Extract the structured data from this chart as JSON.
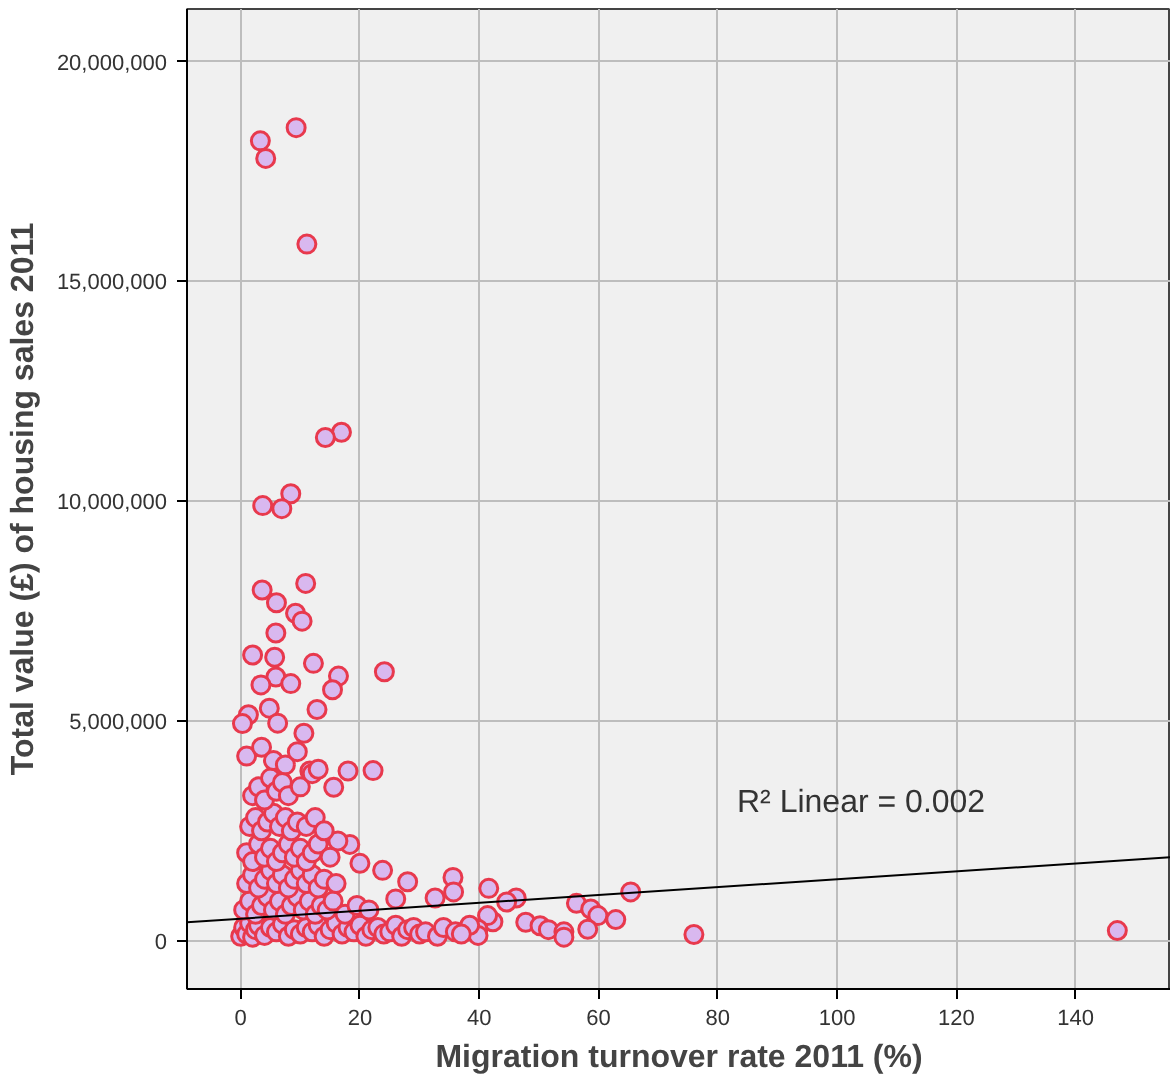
{
  "chart_data": {
    "type": "scatter",
    "xlabel": "Migration turnover rate 2011 (%)",
    "ylabel": "Total value (£) of housing sales 2011",
    "xlim": [
      -9,
      156
    ],
    "ylim": [
      -1100000,
      21200000
    ],
    "xticks": [
      0,
      20,
      40,
      60,
      80,
      100,
      120,
      140
    ],
    "yticks": [
      0,
      {
        "value": 5000000,
        "label": "5,000,000"
      },
      {
        "value": 10000000,
        "label": "10,000,000"
      },
      {
        "value": 15000000,
        "label": "15,000,000"
      },
      {
        "value": 20000000,
        "label": "20,000,000"
      }
    ],
    "grid": true,
    "annotations": [
      "R² Linear = 0.002"
    ],
    "series": [
      {
        "marker": "circle",
        "color": "#e8394d",
        "x": [
          9.3,
          3.3,
          4.2,
          11.1,
          16.9,
          14.2,
          8.4,
          3.7,
          6.9,
          3.6,
          10.9,
          6.0,
          9.2,
          10.3,
          5.9,
          2.0,
          5.7,
          12.2,
          16.4,
          15.4,
          24.1,
          5.9,
          3.4,
          8.4,
          4.8,
          12.8,
          1.3,
          0.3,
          6.2,
          10.6,
          18.0,
          22.2,
          11.6,
          15.6,
          41.6,
          46.2,
          44.6,
          65.4,
          56.3,
          58.7,
          59.9,
          62.9,
          47.8,
          50.2,
          51.6,
          54.2,
          54.2,
          58.2,
          42.3,
          41.4,
          39.8,
          39.8,
          38.4,
          35.6,
          28.0,
          23.8,
          32.6,
          35.7,
          26.0,
          20.0,
          18.3,
          16.3,
          76.0,
          147.0,
          0.0,
          0.5,
          1.0,
          1.5,
          2.0,
          2.5,
          3.0,
          4.0,
          5.0,
          6.0,
          7.0,
          8.0,
          9.0,
          10.0,
          11.0,
          12.0,
          13.0,
          14.0,
          15.0,
          16.0,
          17.0,
          18.0,
          19.0,
          20.0,
          21.0,
          22.0,
          23.0,
          24.0,
          25.0,
          26.0,
          27.0,
          28.0,
          29.0,
          30.0,
          31.0,
          33.0,
          34.0,
          36.0,
          37.0,
          0.5,
          1.5,
          2.5,
          3.5,
          4.5,
          5.5,
          6.5,
          7.5,
          8.5,
          9.5,
          10.5,
          11.5,
          12.5,
          13.5,
          14.5,
          15.5,
          17.5,
          19.5,
          21.5,
          1.0,
          2.0,
          3.0,
          4.0,
          5.0,
          6.0,
          7.0,
          8.0,
          9.0,
          10.0,
          11.0,
          12.0,
          13.0,
          14.0,
          16.0,
          1.0,
          2.0,
          3.0,
          4.0,
          5.0,
          6.0,
          7.0,
          8.0,
          9.0,
          10.0,
          11.0,
          12.0,
          13.0,
          15.0,
          1.5,
          2.5,
          3.5,
          4.5,
          5.5,
          6.5,
          7.5,
          8.5,
          9.5,
          11.0,
          12.5,
          14.0,
          2.0,
          3.0,
          4.0,
          5.0,
          6.0,
          7.0,
          8.0,
          10.0,
          12.0,
          1.0,
          3.5,
          5.5,
          7.5,
          9.5,
          13.0
        ],
        "values": [
          18500000,
          18200000,
          17800000,
          15850000,
          11570000,
          11450000,
          10170000,
          9900000,
          9830000,
          7980000,
          8130000,
          7690000,
          7450000,
          7270000,
          7000000,
          6500000,
          6450000,
          6310000,
          6020000,
          5710000,
          6120000,
          6000000,
          5820000,
          5850000,
          5290000,
          5260000,
          5140000,
          4940000,
          4950000,
          4720000,
          3860000,
          3870000,
          3860000,
          3490000,
          1190000,
          970000,
          880000,
          1110000,
          850000,
          720000,
          570000,
          480000,
          420000,
          340000,
          250000,
          200000,
          80000,
          260000,
          430000,
          570000,
          260000,
          120000,
          350000,
          1440000,
          1340000,
          1600000,
          970000,
          1110000,
          950000,
          1760000,
          2190000,
          2270000,
          140000,
          230000,
          100000,
          300000,
          150000,
          400000,
          80000,
          250000,
          350000,
          120000,
          300000,
          200000,
          380000,
          100000,
          250000,
          150000,
          300000,
          200000,
          350000,
          100000,
          250000,
          400000,
          150000,
          300000,
          200000,
          350000,
          100000,
          250000,
          300000,
          150000,
          200000,
          350000,
          100000,
          250000,
          300000,
          150000,
          200000,
          100000,
          300000,
          200000,
          150000,
          700000,
          900000,
          600000,
          800000,
          1000000,
          700000,
          900000,
          600000,
          800000,
          1000000,
          700000,
          900000,
          600000,
          800000,
          700000,
          900000,
          600000,
          800000,
          700000,
          1300000,
          1500000,
          1200000,
          1400000,
          1600000,
          1300000,
          1500000,
          1200000,
          1400000,
          1600000,
          1300000,
          1500000,
          1200000,
          1400000,
          1300000,
          2000000,
          1800000,
          2200000,
          1900000,
          2100000,
          1800000,
          2000000,
          2200000,
          1900000,
          2100000,
          1800000,
          2000000,
          2200000,
          1900000,
          2600000,
          2800000,
          2500000,
          2700000,
          2900000,
          2600000,
          2800000,
          2500000,
          2700000,
          2600000,
          2800000,
          2500000,
          3300000,
          3500000,
          3200000,
          3700000,
          3400000,
          3600000,
          3300000,
          3500000,
          3800000,
          4200000,
          4400000,
          4100000,
          4000000,
          4300000,
          3900000
        ]
      },
      {
        "type": "line",
        "color": "#000000",
        "x": [
          -9,
          156
        ],
        "values": [
          420000,
          1900000
        ]
      }
    ]
  }
}
